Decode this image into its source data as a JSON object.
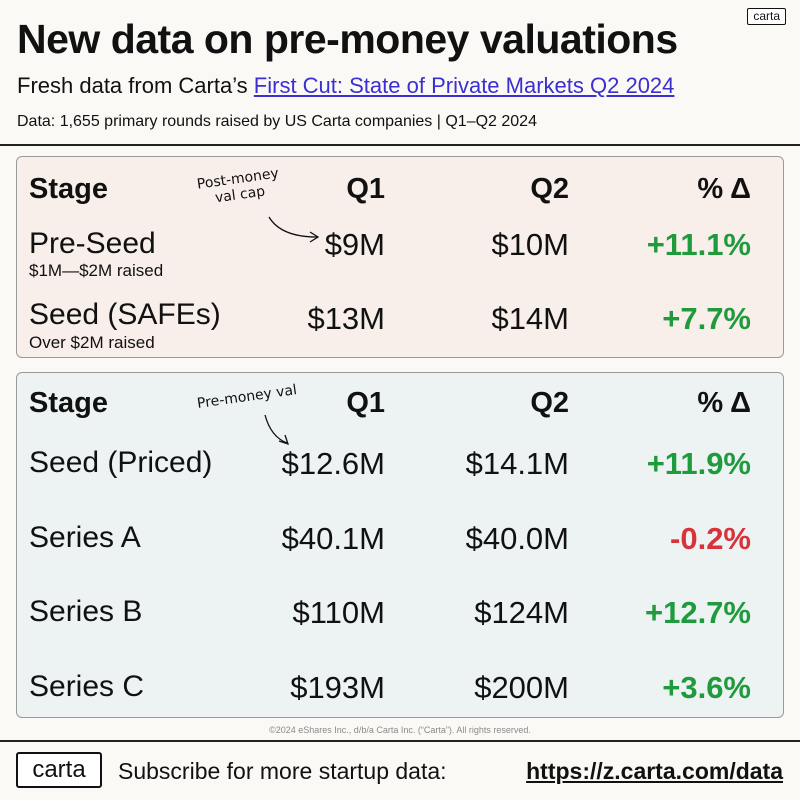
{
  "brand": "carta",
  "header": {
    "title": "New data on pre-money valuations",
    "subtitle_prefix": "Fresh data from Carta’s ",
    "subtitle_link": "First Cut: State of Private Markets Q2 2024",
    "data_note": "Data: 1,655 primary rounds raised by US Carta companies  |  Q1–Q2 2024"
  },
  "colors": {
    "positive": "#1f9a3c",
    "negative": "#d8333a",
    "link": "#3a2fd0",
    "top_panel_bg": "#f8efea",
    "bottom_panel_bg": "#edf2f2"
  },
  "safe_table": {
    "headers": {
      "stage": "Stage",
      "q1": "Q1",
      "q2": "Q2",
      "delta": "% Δ"
    },
    "annotation": "Post-money\nval cap",
    "rows": [
      {
        "stage": "Pre-Seed",
        "note": "$1M—$2M raised",
        "q1": "$9M",
        "q2": "$10M",
        "delta": "+11.1%",
        "sign": "pos"
      },
      {
        "stage": "Seed (SAFEs)",
        "note": "Over $2M raised",
        "q1": "$13M",
        "q2": "$14M",
        "delta": "+7.7%",
        "sign": "pos"
      }
    ]
  },
  "priced_table": {
    "headers": {
      "stage": "Stage",
      "q1": "Q1",
      "q2": "Q2",
      "delta": "% Δ"
    },
    "annotation": "Pre-money val",
    "rows": [
      {
        "stage": "Seed (Priced)",
        "q1": "$12.6M",
        "q2": "$14.1M",
        "delta": "+11.9%",
        "sign": "pos"
      },
      {
        "stage": "Series A",
        "q1": "$40.1M",
        "q2": "$40.0M",
        "delta": "-0.2%",
        "sign": "neg"
      },
      {
        "stage": "Series B",
        "q1": "$110M",
        "q2": "$124M",
        "delta": "+12.7%",
        "sign": "pos"
      },
      {
        "stage": "Series C",
        "q1": "$193M",
        "q2": "$200M",
        "delta": "+3.6%",
        "sign": "pos"
      }
    ]
  },
  "copyright": "©2024 eShares Inc., d/b/a Carta Inc. (“Carta”). All rights reserved.",
  "footer": {
    "logo": "carta",
    "text": "Subscribe for more startup data:",
    "link": "https://z.carta.com/data"
  }
}
